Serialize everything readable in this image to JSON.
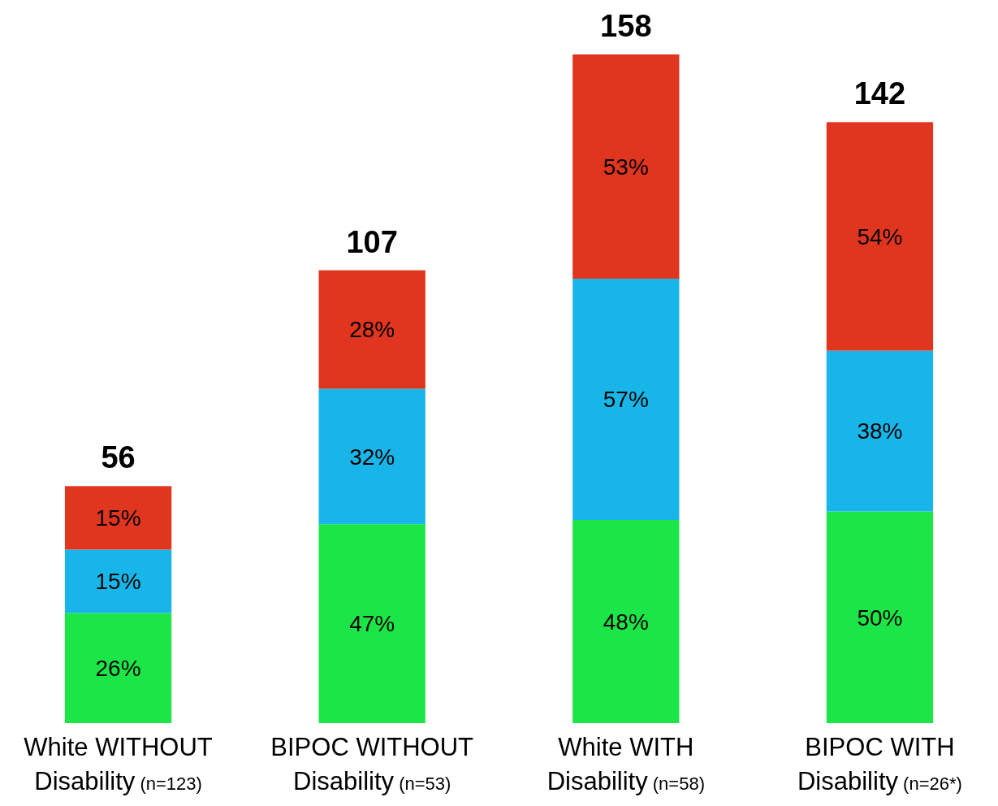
{
  "chart_data": {
    "type": "bar",
    "stacked": true,
    "categories": [
      "White WITHOUT\nDisability (n=123)",
      "BIPOC WITHOUT\nDisability (n=53)",
      "White WITH\nDisability (n=58)",
      "BIPOC WITH\nDisability  (n=26*)"
    ],
    "series": [
      {
        "color": "#1ce647",
        "values": [
          26,
          47,
          48,
          50
        ],
        "value_labels": [
          "26%",
          "47%",
          "48%",
          "50%"
        ]
      },
      {
        "color": "#18b6e8",
        "values": [
          15,
          32,
          57,
          38
        ],
        "value_labels": [
          "15%",
          "32%",
          "57%",
          "38%"
        ]
      },
      {
        "color": "#e0351f",
        "values": [
          15,
          28,
          53,
          54
        ],
        "value_labels": [
          "15%",
          "28%",
          "53%",
          "54%"
        ]
      }
    ],
    "totals": [
      "56",
      "107",
      "158",
      "142"
    ]
  }
}
